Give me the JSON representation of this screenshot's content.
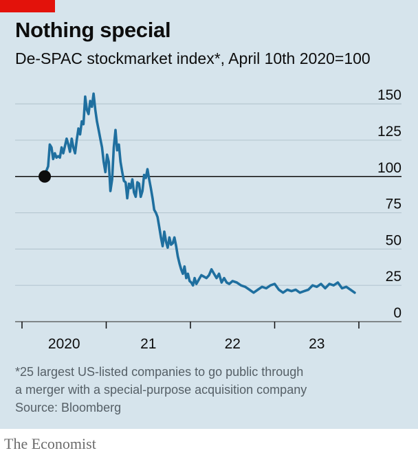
{
  "header": {
    "title": "Nothing special",
    "subtitle": "De-SPAC stockmarket index*, April 10th 2020=100"
  },
  "footnote": {
    "line1": "*25 largest US-listed companies to go public through",
    "line2": "a merger with a special-purpose acquisition company",
    "source": "Source: Bloomberg"
  },
  "brand": "The Economist",
  "colors": {
    "background": "#d6e4ec",
    "line": "#1f6f9f",
    "accent": "#e3120b",
    "gridline": "#b5c7d1",
    "baseline": "#0d0d0d"
  },
  "chart_data": {
    "type": "line",
    "title": "Nothing special",
    "subtitle": "De-SPAC stockmarket index*, April 10th 2020=100",
    "xlabel": "",
    "ylabel": "",
    "ylim": [
      0,
      160
    ],
    "yticks": [
      0,
      25,
      50,
      75,
      100,
      125,
      150
    ],
    "ytick_labels": [
      "0",
      "25",
      "50",
      "75",
      "100",
      "125",
      "150"
    ],
    "xlim": [
      2020.0,
      2024.0
    ],
    "xticks": [
      2020.0,
      2021.0,
      2022.0,
      2023.0,
      2024.0
    ],
    "xlabels": [
      {
        "label": "2020",
        "at": 2020.5
      },
      {
        "label": "21",
        "at": 2021.5
      },
      {
        "label": "22",
        "at": 2022.5
      },
      {
        "label": "23",
        "at": 2023.5
      }
    ],
    "reference_line": 100,
    "grid": true,
    "series": [
      {
        "x": [
          2020.27,
          2020.29,
          2020.31,
          2020.33,
          2020.35,
          2020.37,
          2020.39,
          2020.41,
          2020.43,
          2020.45,
          2020.47,
          2020.49,
          2020.51,
          2020.53,
          2020.55,
          2020.57,
          2020.59,
          2020.61,
          2020.63,
          2020.65,
          2020.67,
          2020.69,
          2020.71,
          2020.73,
          2020.75,
          2020.77,
          2020.79,
          2020.81,
          2020.83,
          2020.85,
          2020.87,
          2020.89,
          2020.91,
          2020.93,
          2020.95,
          2020.97,
          2020.99,
          2021.01,
          2021.03,
          2021.05,
          2021.07,
          2021.09,
          2021.11,
          2021.13,
          2021.15,
          2021.17,
          2021.19,
          2021.21,
          2021.23,
          2021.25,
          2021.27,
          2021.29,
          2021.31,
          2021.33,
          2021.35,
          2021.37,
          2021.39,
          2021.41,
          2021.43,
          2021.45,
          2021.47,
          2021.49,
          2021.51,
          2021.53,
          2021.55,
          2021.57,
          2021.59,
          2021.61,
          2021.63,
          2021.65,
          2021.67,
          2021.69,
          2021.71,
          2021.73,
          2021.75,
          2021.77,
          2021.79,
          2021.81,
          2021.83,
          2021.85,
          2021.87,
          2021.89,
          2021.91,
          2021.93,
          2021.95,
          2021.97,
          2021.99,
          2022.01,
          2022.03,
          2022.05,
          2022.07,
          2022.1,
          2022.13,
          2022.16,
          2022.19,
          2022.22,
          2022.25,
          2022.28,
          2022.31,
          2022.34,
          2022.37,
          2022.4,
          2022.43,
          2022.46,
          2022.5,
          2022.55,
          2022.6,
          2022.65,
          2022.7,
          2022.75,
          2022.8,
          2022.85,
          2022.9,
          2022.95,
          2023.0,
          2023.05,
          2023.1,
          2023.15,
          2023.2,
          2023.25,
          2023.3,
          2023.35,
          2023.4,
          2023.45,
          2023.5,
          2023.55,
          2023.6,
          2023.65,
          2023.7,
          2023.75,
          2023.8,
          2023.85,
          2023.9,
          2023.95
        ],
        "values": [
          100,
          104,
          107,
          122,
          120,
          112,
          116,
          113,
          114,
          113,
          120,
          116,
          121,
          126,
          122,
          117,
          126,
          120,
          116,
          125,
          133,
          129,
          138,
          136,
          155,
          146,
          143,
          152,
          148,
          157,
          146,
          138,
          132,
          126,
          120,
          110,
          103,
          115,
          110,
          90,
          98,
          120,
          132,
          118,
          122,
          110,
          103,
          97,
          96,
          85,
          95,
          92,
          98,
          89,
          86,
          96,
          95,
          86,
          90,
          101,
          99,
          105,
          98,
          92,
          85,
          77,
          75,
          72,
          65,
          58,
          52,
          62,
          55,
          51,
          58,
          53,
          54,
          58,
          52,
          45,
          40,
          36,
          33,
          38,
          30,
          33,
          28,
          27,
          25,
          30,
          26,
          29,
          32,
          31,
          30,
          32,
          36,
          33,
          30,
          33,
          27,
          30,
          27,
          26,
          28,
          27,
          25,
          24,
          22,
          20,
          22,
          24,
          23,
          25,
          26,
          22,
          20,
          22,
          21,
          22,
          20,
          21,
          22,
          25,
          24,
          26,
          23,
          26,
          25,
          27,
          23,
          24,
          22,
          20
        ]
      }
    ]
  }
}
